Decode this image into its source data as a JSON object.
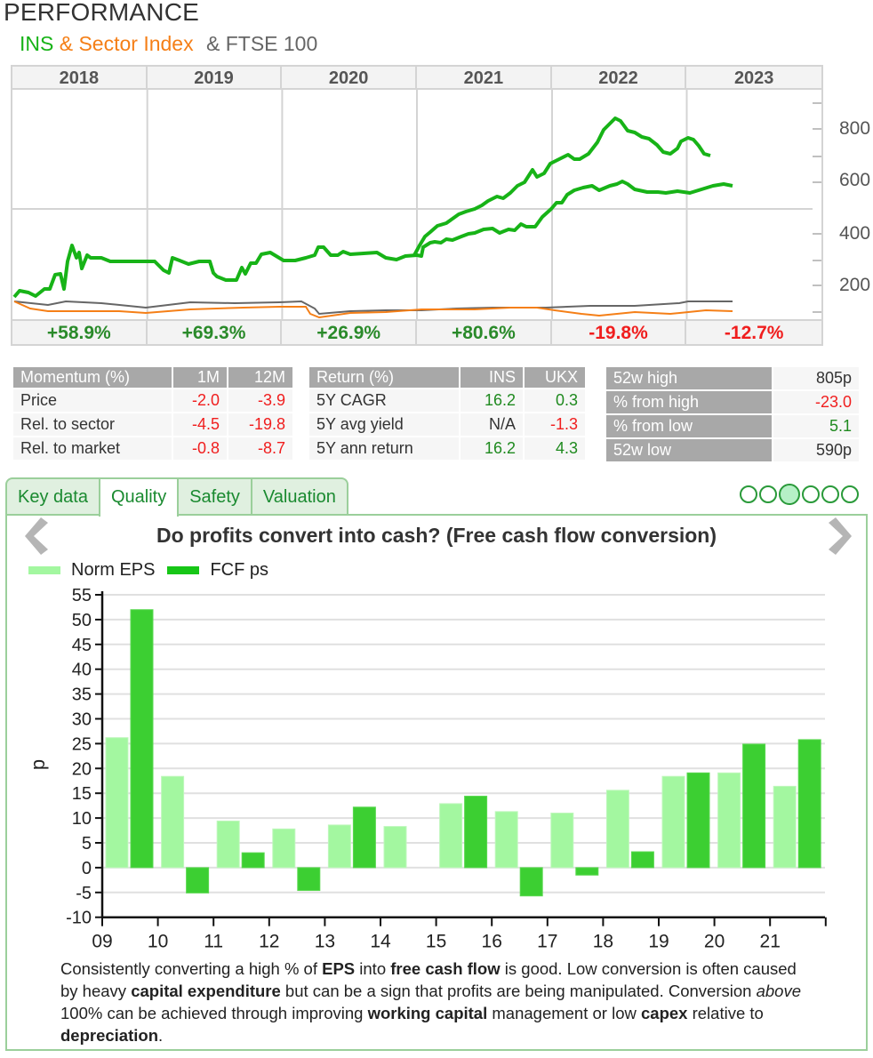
{
  "header": {
    "title": "PERFORMANCE",
    "subtitle_ins": "INS",
    "subtitle_sector": "& Sector Index",
    "subtitle_ftse": "& FTSE 100"
  },
  "performance": {
    "years": [
      "2018",
      "2019",
      "2020",
      "2021",
      "2022",
      "2023"
    ],
    "returns": [
      {
        "label": "+58.9%",
        "sign": "pos"
      },
      {
        "label": "+69.3%",
        "sign": "pos"
      },
      {
        "label": "+26.9%",
        "sign": "pos"
      },
      {
        "label": "+80.6%",
        "sign": "pos"
      },
      {
        "label": "-19.8%",
        "sign": "neg"
      },
      {
        "label": "-12.7%",
        "sign": "neg"
      }
    ],
    "y_labels": [
      "800",
      "600",
      "400",
      "200"
    ],
    "colors": {
      "ins": "#17b317",
      "sector": "#f57f17",
      "ftse": "#666666"
    }
  },
  "momentum": {
    "header": [
      "Momentum (%)",
      "1M",
      "12M"
    ],
    "rows": [
      {
        "label": "Price",
        "m1": "-2.0",
        "m12": "-3.9"
      },
      {
        "label": "Rel. to sector",
        "m1": "-4.5",
        "m12": "-19.8"
      },
      {
        "label": "Rel. to market",
        "m1": "-0.8",
        "m12": "-8.7"
      }
    ]
  },
  "returns_table": {
    "header": [
      "Return (%)",
      "INS",
      "UKX"
    ],
    "rows": [
      {
        "label": "5Y CAGR",
        "ins": "16.2",
        "ukx": "0.3"
      },
      {
        "label": "5Y avg yield",
        "ins": "N/A",
        "ukx": "-1.3"
      },
      {
        "label": "5Y ann return",
        "ins": "16.2",
        "ukx": "4.3"
      }
    ]
  },
  "range_table": {
    "rows": [
      {
        "label": "52w high",
        "value": "805p"
      },
      {
        "label": "% from high",
        "value": "-23.0"
      },
      {
        "label": "% from low",
        "value": "5.1"
      },
      {
        "label": "52w low",
        "value": "590p"
      }
    ]
  },
  "tabs": [
    {
      "label": "Key data",
      "active": false
    },
    {
      "label": "Quality",
      "active": true
    },
    {
      "label": "Safety",
      "active": false
    },
    {
      "label": "Valuation",
      "active": false
    }
  ],
  "pager": {
    "count": 6,
    "active_index": 2
  },
  "chart_data": {
    "type": "bar",
    "title": "Do profits convert into cash? (Free cash flow conversion)",
    "xlabel": "",
    "ylabel": "p",
    "ylim": [
      -10,
      55
    ],
    "yticks": [
      55,
      50,
      45,
      40,
      35,
      30,
      25,
      20,
      15,
      10,
      5,
      0,
      -5,
      -10
    ],
    "categories": [
      "09",
      "10",
      "11",
      "12",
      "13",
      "14",
      "15",
      "16",
      "17",
      "18",
      "19",
      "20",
      "21"
    ],
    "grid": true,
    "legend_position": "top-left",
    "series": [
      {
        "name": "Norm EPS",
        "color": "#a3f7a0",
        "values": [
          26.2,
          18.4,
          9.4,
          7.8,
          8.6,
          8.3,
          12.9,
          11.3,
          11.0,
          15.6,
          18.4,
          19.1,
          16.4
        ]
      },
      {
        "name": "FCF ps",
        "color": "#3ccf32",
        "values": [
          52.0,
          -5.1,
          3.0,
          -4.6,
          12.2,
          null,
          14.4,
          -5.7,
          -1.5,
          3.2,
          19.1,
          24.9,
          25.8
        ]
      }
    ]
  },
  "description": {
    "parts": [
      {
        "t": "Consistently converting a high % of ",
        "s": "n"
      },
      {
        "t": "EPS",
        "s": "b"
      },
      {
        "t": " into ",
        "s": "n"
      },
      {
        "t": "free cash flow",
        "s": "b"
      },
      {
        "t": " is good. Low conversion is often caused by heavy ",
        "s": "n"
      },
      {
        "t": "capital expenditure",
        "s": "b"
      },
      {
        "t": " but can be a sign that profits are being manipulated. Conversion ",
        "s": "n"
      },
      {
        "t": "above",
        "s": "i"
      },
      {
        "t": " 100% can be achieved through improving ",
        "s": "n"
      },
      {
        "t": "working capital",
        "s": "b"
      },
      {
        "t": " management or low ",
        "s": "n"
      },
      {
        "t": "capex",
        "s": "b"
      },
      {
        "t": " relative to ",
        "s": "n"
      },
      {
        "t": "depreciation",
        "s": "b"
      },
      {
        "t": ".",
        "s": "n"
      }
    ]
  },
  "nav": {
    "prev_icon": "chevron-left-icon",
    "next_icon": "chevron-right-icon"
  }
}
